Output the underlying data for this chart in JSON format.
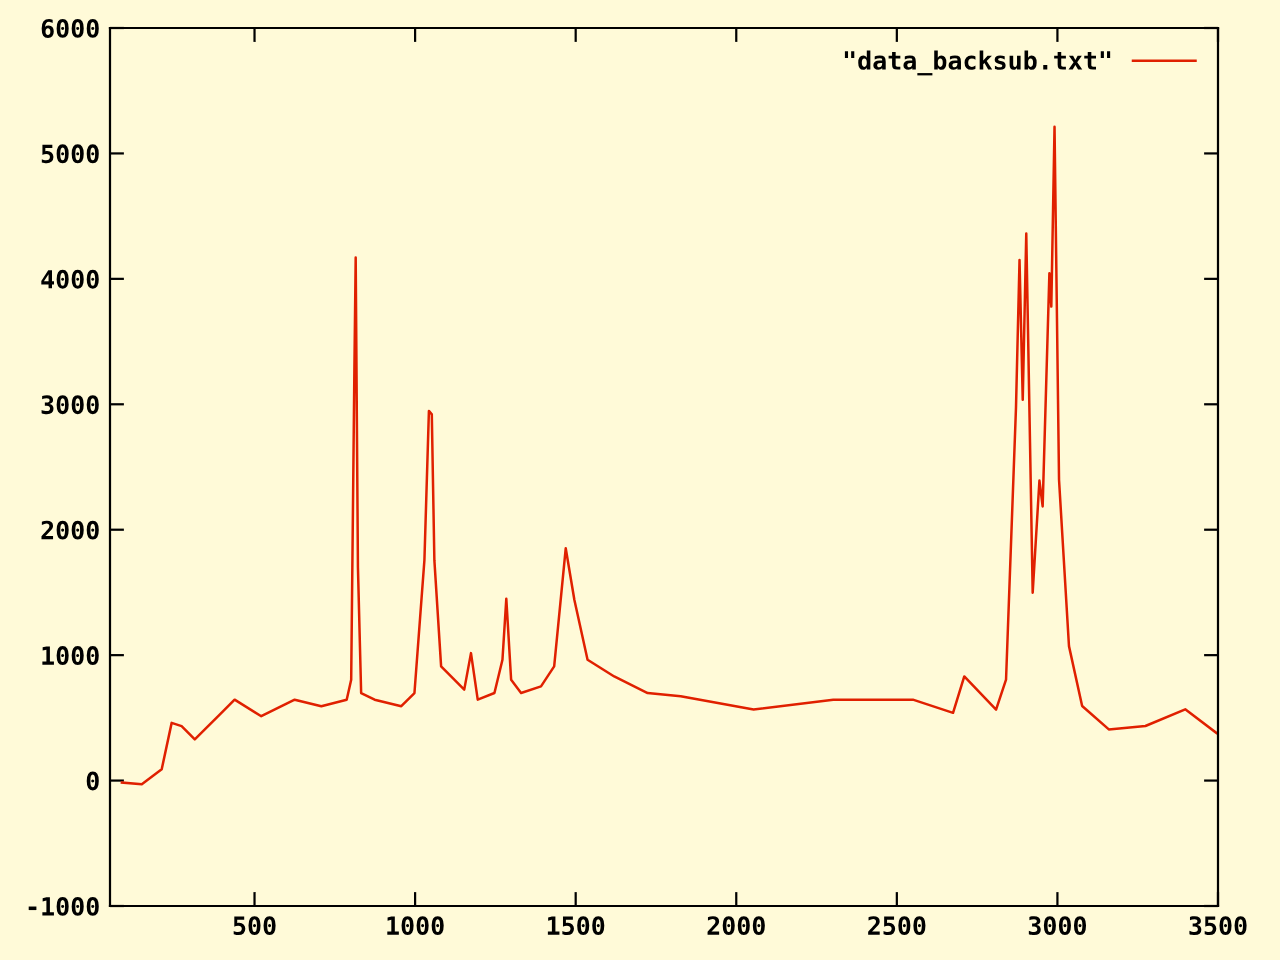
{
  "chart_data": {
    "type": "line",
    "xlim": [
      50,
      3500
    ],
    "ylim": [
      -1000,
      6000
    ],
    "xticks": [
      500,
      1000,
      1500,
      2000,
      2500,
      3000,
      3500
    ],
    "yticks": [
      -1000,
      0,
      1000,
      2000,
      3000,
      4000,
      5000,
      6000
    ],
    "grid": false,
    "legend": "top right",
    "marker": "none",
    "line_style": "solid",
    "series": [
      {
        "name": "\"data_backsub.txt\"",
        "color": "#e02000",
        "x": [
          87,
          149,
          211,
          242,
          273,
          314,
          397,
          438,
          521,
          625,
          708,
          787,
          801,
          811,
          815,
          822,
          832,
          874,
          957,
          998,
          1029,
          1043,
          1052,
          1060,
          1081,
          1112,
          1153,
          1174,
          1195,
          1247,
          1272,
          1284,
          1299,
          1330,
          1392,
          1433,
          1469,
          1496,
          1537,
          1620,
          1724,
          1827,
          2054,
          2302,
          2550,
          2675,
          2710,
          2809,
          2840,
          2871,
          2882,
          2892,
          2903,
          2923,
          2944,
          2954,
          2975,
          2981,
          2991,
          3005,
          3036,
          3077,
          3160,
          3274,
          3398,
          3495
        ],
        "values": [
          -16,
          -30,
          90,
          460,
          434,
          328,
          540,
          645,
          513,
          645,
          593,
          645,
          804,
          3290,
          4170,
          1700,
          698,
          645,
          593,
          698,
          1757,
          2947,
          2920,
          1757,
          910,
          830,
          725,
          1016,
          645,
          698,
          963,
          1450,
          804,
          698,
          751,
          910,
          1852,
          1439,
          963,
          830,
          698,
          672,
          566,
          645,
          645,
          540,
          830,
          566,
          804,
          2974,
          4150,
          3036,
          4362,
          1498,
          2392,
          2186,
          4044,
          3779,
          5212,
          2398,
          1072,
          595,
          408,
          435,
          568,
          380
        ]
      }
    ]
  }
}
